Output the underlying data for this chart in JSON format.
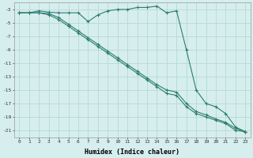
{
  "xlabel": "Humidex (Indice chaleur)",
  "background_color": "#d6eeee",
  "grid_color": "#b8d8d8",
  "line_color": "#2d7d6e",
  "xlim": [
    -0.5,
    23.5
  ],
  "ylim": [
    -22,
    -2.0
  ],
  "yticks": [
    -3,
    -5,
    -7,
    -9,
    -11,
    -13,
    -15,
    -17,
    -19,
    -21
  ],
  "xticks": [
    0,
    1,
    2,
    3,
    4,
    5,
    6,
    7,
    8,
    9,
    10,
    11,
    12,
    13,
    14,
    15,
    16,
    17,
    18,
    19,
    20,
    21,
    22,
    23
  ],
  "line1_x": [
    0,
    1,
    2,
    3,
    4,
    5,
    6,
    7,
    8,
    9,
    10,
    11,
    12,
    13,
    14,
    15,
    16,
    17,
    18,
    19,
    20,
    21,
    22,
    23
  ],
  "line1_y": [
    -3.5,
    -3.5,
    -3.2,
    -3.4,
    -3.5,
    -3.5,
    -3.5,
    -4.8,
    -3.8,
    -3.2,
    -3.0,
    -3.0,
    -2.7,
    -2.7,
    -2.5,
    -3.5,
    -3.2,
    -9.0,
    -15.0,
    -17.0,
    -17.5,
    -18.5,
    -20.5,
    -21.2
  ],
  "line2_x": [
    0,
    1,
    2,
    3,
    4,
    5,
    6,
    7,
    8,
    9,
    10,
    11,
    12,
    13,
    14,
    15,
    16,
    17,
    18,
    19,
    20,
    21,
    22,
    23
  ],
  "line2_y": [
    -3.5,
    -3.5,
    -3.5,
    -3.6,
    -4.2,
    -5.2,
    -6.2,
    -7.2,
    -8.2,
    -9.2,
    -10.2,
    -11.2,
    -12.2,
    -13.2,
    -14.2,
    -15.0,
    -15.3,
    -17.0,
    -18.2,
    -18.7,
    -19.3,
    -19.8,
    -20.7,
    -21.2
  ],
  "line3_x": [
    0,
    1,
    2,
    3,
    4,
    5,
    6,
    7,
    8,
    9,
    10,
    11,
    12,
    13,
    14,
    15,
    16,
    17,
    18,
    19,
    20,
    21,
    22,
    23
  ],
  "line3_y": [
    -3.5,
    -3.5,
    -3.5,
    -3.8,
    -4.5,
    -5.5,
    -6.5,
    -7.5,
    -8.5,
    -9.5,
    -10.5,
    -11.5,
    -12.5,
    -13.5,
    -14.5,
    -15.5,
    -15.8,
    -17.5,
    -18.5,
    -19.0,
    -19.5,
    -20.0,
    -21.0,
    -21.2
  ]
}
